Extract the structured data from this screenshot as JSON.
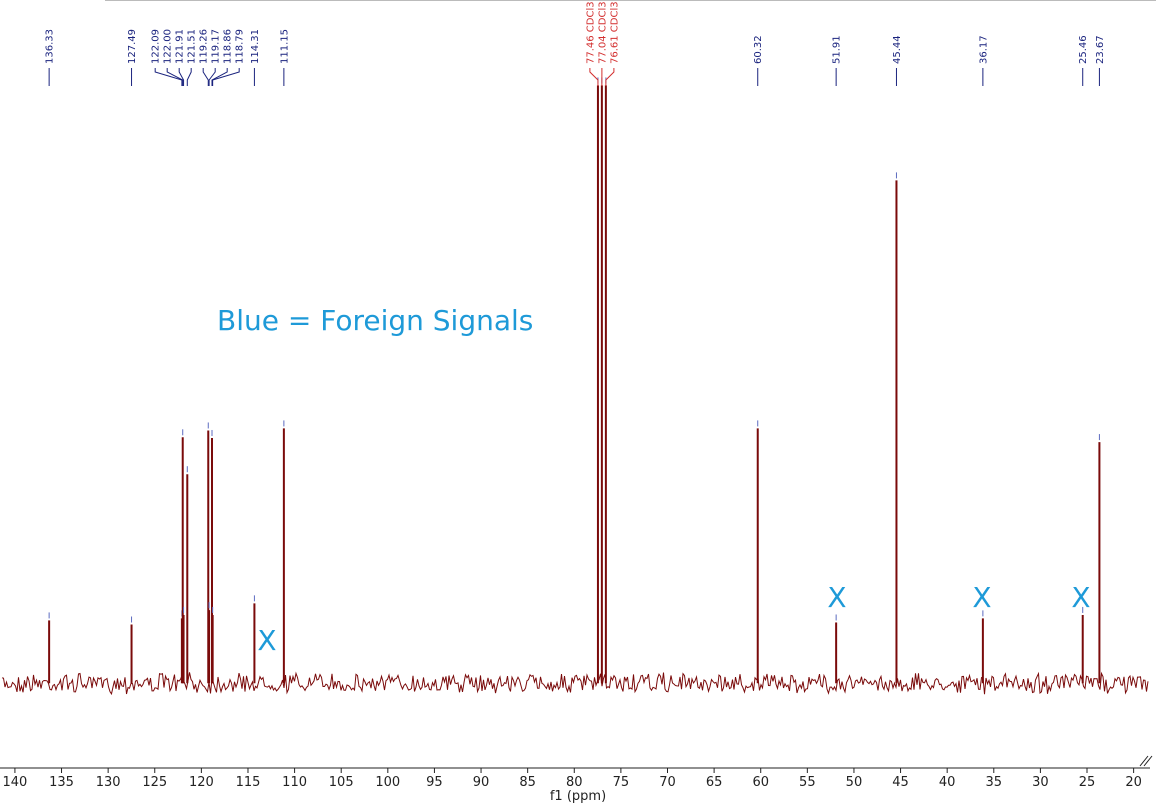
{
  "chart_data": {
    "type": "spectrum",
    "xlabel": "f1 (ppm)",
    "color": "#7a0a0a",
    "xlim": [
      141.6,
      17.6
    ],
    "ylim": [
      -12.4,
      100
    ],
    "xticks": [
      140,
      135,
      130,
      125,
      120,
      115,
      110,
      105,
      100,
      95,
      90,
      85,
      80,
      75,
      70,
      65,
      60,
      55,
      50,
      45,
      40,
      35,
      30,
      25,
      20
    ],
    "x": [
      136.33,
      127.49,
      122.09,
      122.0,
      121.91,
      121.51,
      119.26,
      119.17,
      118.86,
      118.79,
      114.31,
      111.15,
      77.46,
      77.04,
      76.61,
      60.32,
      51.91,
      45.44,
      36.17,
      25.46,
      23.67
    ],
    "values": [
      9.2,
      8.6,
      9.5,
      36.0,
      10.0,
      30.6,
      37.0,
      10.7,
      35.9,
      10.0,
      11.7,
      37.3,
      87.5,
      87.5,
      87.5,
      37.3,
      8.9,
      73.6,
      9.5,
      10.0,
      35.3
    ],
    "x_labels": [
      "136.33",
      "127.49",
      "122.09",
      "122.00",
      "121.91",
      "121.51",
      "119.26",
      "119.17",
      "118.86",
      "118.79",
      "114.31",
      "111.15",
      "77.46 CDCl3",
      "77.04 CDCl3",
      "76.61 CDCl3",
      "60.32",
      "51.91",
      "45.44",
      "36.17",
      "25.46",
      "23.67"
    ],
    "label_colors": [
      "#1a237e",
      "#1a237e",
      "#1a237e",
      "#1a237e",
      "#1a237e",
      "#1a237e",
      "#1a237e",
      "#1a237e",
      "#1a237e",
      "#1a237e",
      "#1a237e",
      "#1a237e",
      "#d32f2f",
      "#d32f2f",
      "#d32f2f",
      "#1a237e",
      "#1a237e",
      "#1a237e",
      "#1a237e",
      "#1a237e",
      "#1a237e"
    ],
    "annotations": [
      "Blue = Foreign Signals",
      "X",
      "X",
      "X",
      "X"
    ]
  }
}
